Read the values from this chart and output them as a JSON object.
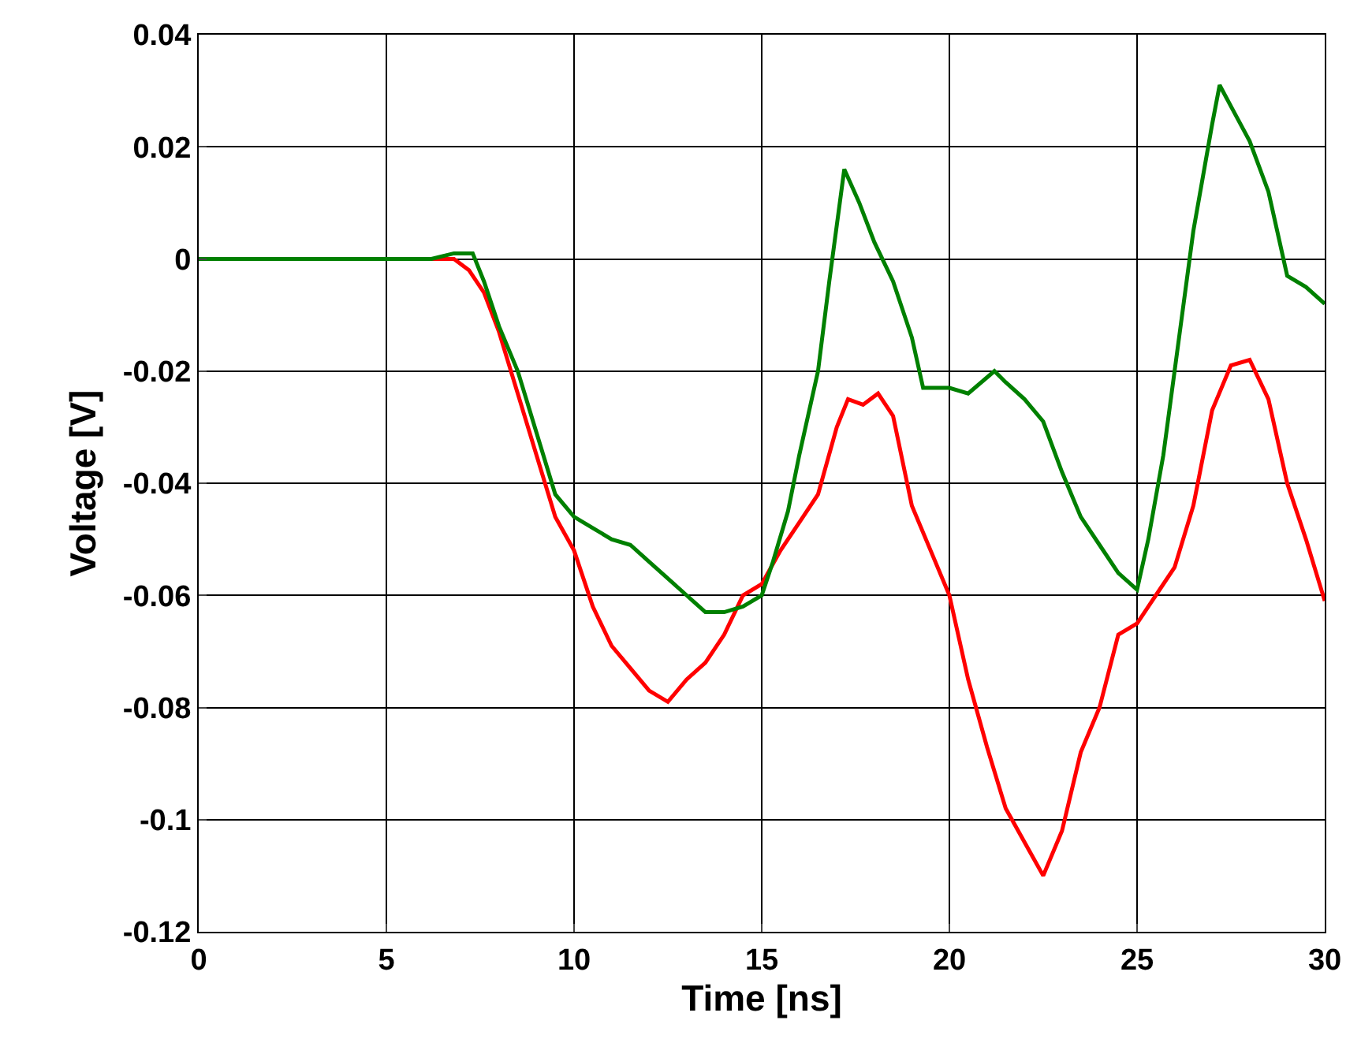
{
  "chart_data": {
    "type": "line",
    "xlabel": "Time [ns]",
    "ylabel": "Voltage [V]",
    "xlim": [
      0,
      30
    ],
    "xticks": [
      0,
      5,
      10,
      15,
      20,
      25,
      30
    ],
    "ylim": [
      -0.12,
      0.04
    ],
    "yticks": [
      -0.12,
      -0.1,
      -0.08,
      -0.06,
      -0.04,
      -0.02,
      0,
      0.02,
      0.04
    ],
    "grid": true,
    "marker": "none",
    "line_style": "solid",
    "series": [
      {
        "color": "#ff0000",
        "x": [
          0,
          6,
          6.8,
          7.2,
          7.6,
          8,
          8.5,
          9,
          9.5,
          10,
          10.5,
          11,
          11.5,
          12,
          12.5,
          13,
          13.5,
          14,
          14.5,
          15,
          15.5,
          16,
          16.5,
          17,
          17.3,
          17.7,
          18.1,
          18.5,
          19,
          19.5,
          20,
          20.5,
          21,
          21.5,
          22,
          22.5,
          23,
          23.5,
          24,
          24.5,
          25,
          25.5,
          26,
          26.5,
          27,
          27.5,
          28,
          28.5,
          29,
          29.5,
          30
        ],
        "values": [
          0,
          0,
          0,
          -0.002,
          -0.006,
          -0.013,
          -0.024,
          -0.035,
          -0.046,
          -0.052,
          -0.062,
          -0.069,
          -0.073,
          -0.077,
          -0.079,
          -0.075,
          -0.072,
          -0.067,
          -0.06,
          -0.058,
          -0.052,
          -0.047,
          -0.042,
          -0.03,
          -0.025,
          -0.026,
          -0.024,
          -0.028,
          -0.044,
          -0.052,
          -0.06,
          -0.075,
          -0.087,
          -0.098,
          -0.104,
          -0.11,
          -0.102,
          -0.088,
          -0.08,
          -0.067,
          -0.065,
          -0.06,
          -0.055,
          -0.044,
          -0.027,
          -0.019,
          -0.018,
          -0.025,
          -0.04,
          -0.05,
          -0.061
        ]
      },
      {
        "color": "#008000",
        "x": [
          0,
          6.2,
          6.8,
          7.3,
          7.6,
          8,
          8.5,
          9,
          9.5,
          10,
          10.5,
          11,
          11.5,
          12,
          12.5,
          13,
          13.5,
          14,
          14.5,
          15,
          15.3,
          15.7,
          16,
          16.5,
          16.8,
          17.2,
          17.6,
          18,
          18.5,
          19,
          19.3,
          20,
          20.5,
          21.2,
          21.5,
          22,
          22.5,
          23,
          23.5,
          24,
          24.5,
          25,
          25.3,
          25.7,
          26,
          26.5,
          27,
          27.2,
          27.6,
          28,
          28.5,
          29,
          29.5,
          30
        ],
        "values": [
          0,
          0,
          0.001,
          0.001,
          -0.004,
          -0.012,
          -0.02,
          -0.031,
          -0.042,
          -0.046,
          -0.048,
          -0.05,
          -0.051,
          -0.054,
          -0.057,
          -0.06,
          -0.063,
          -0.063,
          -0.062,
          -0.06,
          -0.054,
          -0.045,
          -0.035,
          -0.02,
          -0.004,
          0.016,
          0.01,
          0.003,
          -0.004,
          -0.014,
          -0.023,
          -0.023,
          -0.024,
          -0.02,
          -0.022,
          -0.025,
          -0.029,
          -0.038,
          -0.046,
          -0.051,
          -0.056,
          -0.059,
          -0.05,
          -0.035,
          -0.02,
          0.005,
          0.024,
          0.031,
          0.026,
          0.021,
          0.012,
          -0.003,
          -0.005,
          -0.008
        ]
      }
    ]
  }
}
